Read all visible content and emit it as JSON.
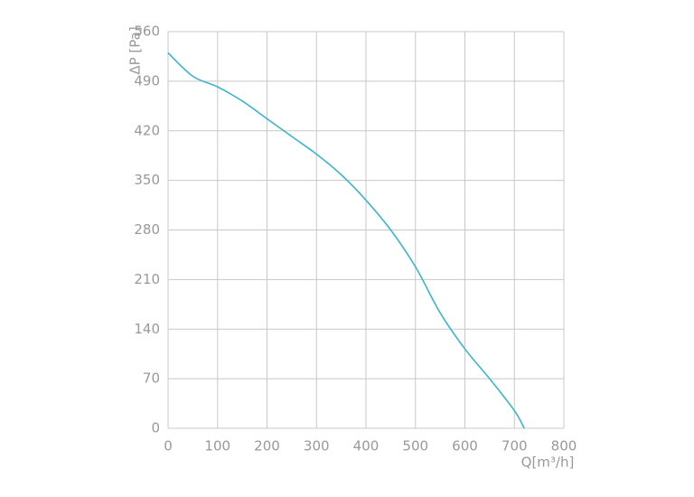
{
  "chart_data": {
    "type": "line",
    "x_label": "Q[m³/h]",
    "y_label": "ΔP [Pa]",
    "x": [
      0,
      50,
      100,
      150,
      200,
      250,
      300,
      350,
      400,
      450,
      500,
      550,
      600,
      650,
      700,
      720
    ],
    "series": [
      {
        "color": "#3ab5d0",
        "values": [
          530,
          497,
          482,
          462,
          437,
          412,
          387,
          358,
          322,
          280,
          228,
          163,
          112,
          70,
          25,
          0
        ]
      }
    ],
    "xlim": [
      0,
      800
    ],
    "xticks": [
      0,
      100,
      200,
      300,
      400,
      500,
      600,
      700,
      800
    ],
    "ylim": [
      0,
      560
    ],
    "yticks": [
      0,
      70,
      140,
      210,
      280,
      350,
      420,
      490,
      560
    ],
    "grid": true
  }
}
